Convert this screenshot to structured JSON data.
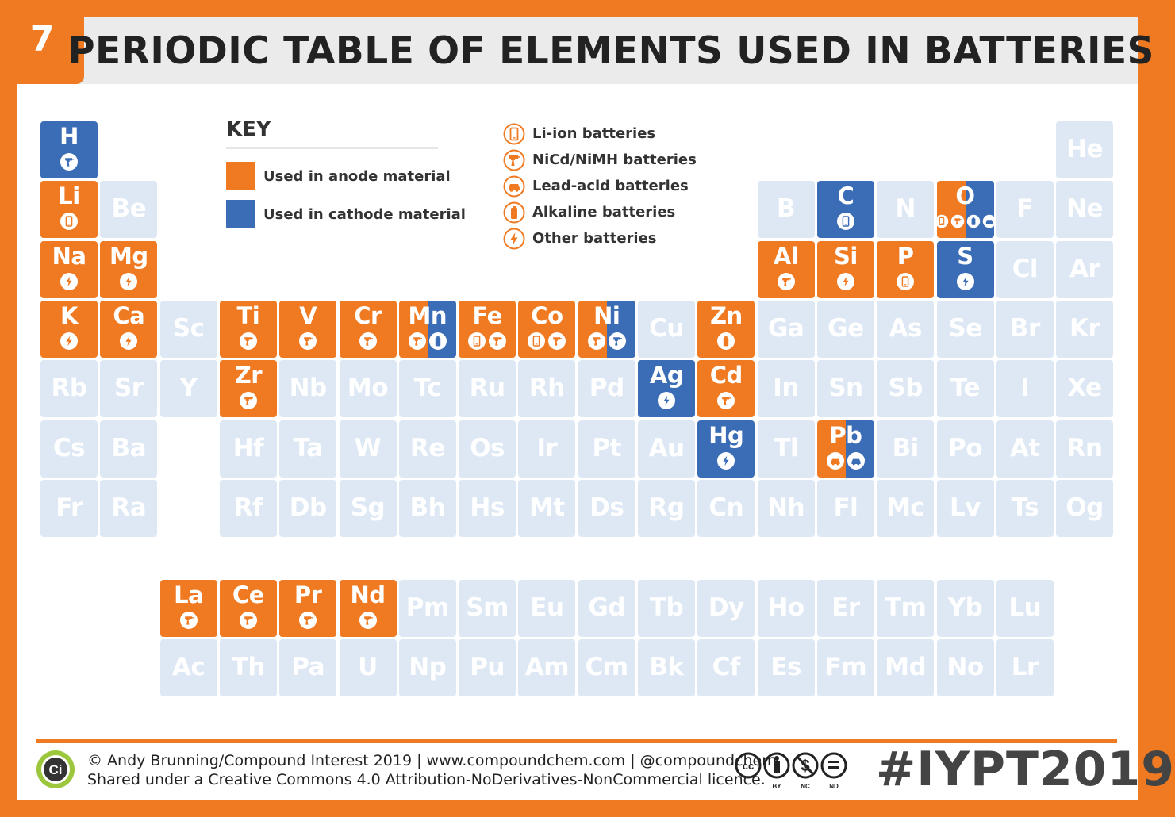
{
  "header": {
    "number": "7",
    "title": "PERIODIC TABLE OF ELEMENTS USED IN BATTERIES"
  },
  "colors": {
    "anode": "#ef7a22",
    "cathode": "#3a6db5",
    "unused": "#dde8f4",
    "frame": "#ef7a22"
  },
  "key": {
    "title": "KEY",
    "anode_label": "Used in anode material",
    "cathode_label": "Used in cathode material"
  },
  "battery_types": [
    {
      "icon": "phone-icon",
      "label": "Li-ion batteries"
    },
    {
      "icon": "drill-icon",
      "label": "NiCd/NiMH batteries"
    },
    {
      "icon": "car-icon",
      "label": "Lead-acid batteries"
    },
    {
      "icon": "battery-icon",
      "label": "Alkaline batteries"
    },
    {
      "icon": "bolt-icon",
      "label": "Other batteries"
    }
  ],
  "elements": [
    {
      "s": "H",
      "r": 1,
      "c": 1,
      "role": "cathode",
      "icons": [
        "drill"
      ]
    },
    {
      "s": "He",
      "r": 1,
      "c": 18
    },
    {
      "s": "Li",
      "r": 2,
      "c": 1,
      "role": "anode",
      "icons": [
        "phone"
      ]
    },
    {
      "s": "Be",
      "r": 2,
      "c": 2
    },
    {
      "s": "B",
      "r": 2,
      "c": 13
    },
    {
      "s": "C",
      "r": 2,
      "c": 14,
      "role": "cathode",
      "icons": [
        "phone"
      ]
    },
    {
      "s": "N",
      "r": 2,
      "c": 15
    },
    {
      "s": "O",
      "r": 2,
      "c": 16,
      "role": "both",
      "icons": [
        "phone",
        "drill",
        "battery",
        "car"
      ]
    },
    {
      "s": "F",
      "r": 2,
      "c": 17
    },
    {
      "s": "Ne",
      "r": 2,
      "c": 18
    },
    {
      "s": "Na",
      "r": 3,
      "c": 1,
      "role": "anode",
      "icons": [
        "bolt"
      ]
    },
    {
      "s": "Mg",
      "r": 3,
      "c": 2,
      "role": "anode",
      "icons": [
        "bolt"
      ]
    },
    {
      "s": "Al",
      "r": 3,
      "c": 13,
      "role": "anode",
      "icons": [
        "drill"
      ]
    },
    {
      "s": "Si",
      "r": 3,
      "c": 14,
      "role": "anode",
      "icons": [
        "bolt"
      ]
    },
    {
      "s": "P",
      "r": 3,
      "c": 15,
      "role": "anode",
      "icons": [
        "phone"
      ]
    },
    {
      "s": "S",
      "r": 3,
      "c": 16,
      "role": "cathode",
      "icons": [
        "bolt"
      ]
    },
    {
      "s": "Cl",
      "r": 3,
      "c": 17
    },
    {
      "s": "Ar",
      "r": 3,
      "c": 18
    },
    {
      "s": "K",
      "r": 4,
      "c": 1,
      "role": "anode",
      "icons": [
        "bolt"
      ]
    },
    {
      "s": "Ca",
      "r": 4,
      "c": 2,
      "role": "anode",
      "icons": [
        "bolt"
      ]
    },
    {
      "s": "Sc",
      "r": 4,
      "c": 3
    },
    {
      "s": "Ti",
      "r": 4,
      "c": 4,
      "role": "anode",
      "icons": [
        "drill"
      ]
    },
    {
      "s": "V",
      "r": 4,
      "c": 5,
      "role": "anode",
      "icons": [
        "drill"
      ]
    },
    {
      "s": "Cr",
      "r": 4,
      "c": 6,
      "role": "anode",
      "icons": [
        "drill"
      ]
    },
    {
      "s": "Mn",
      "r": 4,
      "c": 7,
      "role": "both",
      "icons": [
        "drill",
        "battery"
      ]
    },
    {
      "s": "Fe",
      "r": 4,
      "c": 8,
      "role": "anode",
      "icons": [
        "phone",
        "drill"
      ]
    },
    {
      "s": "Co",
      "r": 4,
      "c": 9,
      "role": "anode",
      "icons": [
        "phone",
        "drill"
      ]
    },
    {
      "s": "Ni",
      "r": 4,
      "c": 10,
      "role": "both",
      "icons": [
        "drill",
        "drill"
      ]
    },
    {
      "s": "Cu",
      "r": 4,
      "c": 11
    },
    {
      "s": "Zn",
      "r": 4,
      "c": 12,
      "role": "anode",
      "icons": [
        "battery"
      ]
    },
    {
      "s": "Ga",
      "r": 4,
      "c": 13
    },
    {
      "s": "Ge",
      "r": 4,
      "c": 14
    },
    {
      "s": "As",
      "r": 4,
      "c": 15
    },
    {
      "s": "Se",
      "r": 4,
      "c": 16
    },
    {
      "s": "Br",
      "r": 4,
      "c": 17
    },
    {
      "s": "Kr",
      "r": 4,
      "c": 18
    },
    {
      "s": "Rb",
      "r": 5,
      "c": 1
    },
    {
      "s": "Sr",
      "r": 5,
      "c": 2
    },
    {
      "s": "Y",
      "r": 5,
      "c": 3
    },
    {
      "s": "Zr",
      "r": 5,
      "c": 4,
      "role": "anode",
      "icons": [
        "drill"
      ]
    },
    {
      "s": "Nb",
      "r": 5,
      "c": 5
    },
    {
      "s": "Mo",
      "r": 5,
      "c": 6
    },
    {
      "s": "Tc",
      "r": 5,
      "c": 7
    },
    {
      "s": "Ru",
      "r": 5,
      "c": 8
    },
    {
      "s": "Rh",
      "r": 5,
      "c": 9
    },
    {
      "s": "Pd",
      "r": 5,
      "c": 10
    },
    {
      "s": "Ag",
      "r": 5,
      "c": 11,
      "role": "cathode",
      "icons": [
        "bolt"
      ]
    },
    {
      "s": "Cd",
      "r": 5,
      "c": 12,
      "role": "anode",
      "icons": [
        "drill"
      ]
    },
    {
      "s": "In",
      "r": 5,
      "c": 13
    },
    {
      "s": "Sn",
      "r": 5,
      "c": 14
    },
    {
      "s": "Sb",
      "r": 5,
      "c": 15
    },
    {
      "s": "Te",
      "r": 5,
      "c": 16
    },
    {
      "s": "I",
      "r": 5,
      "c": 17
    },
    {
      "s": "Xe",
      "r": 5,
      "c": 18
    },
    {
      "s": "Cs",
      "r": 6,
      "c": 1
    },
    {
      "s": "Ba",
      "r": 6,
      "c": 2
    },
    {
      "s": "Hf",
      "r": 6,
      "c": 4
    },
    {
      "s": "Ta",
      "r": 6,
      "c": 5
    },
    {
      "s": "W",
      "r": 6,
      "c": 6
    },
    {
      "s": "Re",
      "r": 6,
      "c": 7
    },
    {
      "s": "Os",
      "r": 6,
      "c": 8
    },
    {
      "s": "Ir",
      "r": 6,
      "c": 9
    },
    {
      "s": "Pt",
      "r": 6,
      "c": 10
    },
    {
      "s": "Au",
      "r": 6,
      "c": 11
    },
    {
      "s": "Hg",
      "r": 6,
      "c": 12,
      "role": "cathode",
      "icons": [
        "bolt"
      ]
    },
    {
      "s": "Tl",
      "r": 6,
      "c": 13
    },
    {
      "s": "Pb",
      "r": 6,
      "c": 14,
      "role": "both",
      "icons": [
        "car",
        "car"
      ]
    },
    {
      "s": "Bi",
      "r": 6,
      "c": 15
    },
    {
      "s": "Po",
      "r": 6,
      "c": 16
    },
    {
      "s": "At",
      "r": 6,
      "c": 17
    },
    {
      "s": "Rn",
      "r": 6,
      "c": 18
    },
    {
      "s": "Fr",
      "r": 7,
      "c": 1
    },
    {
      "s": "Ra",
      "r": 7,
      "c": 2
    },
    {
      "s": "Rf",
      "r": 7,
      "c": 4
    },
    {
      "s": "Db",
      "r": 7,
      "c": 5
    },
    {
      "s": "Sg",
      "r": 7,
      "c": 6
    },
    {
      "s": "Bh",
      "r": 7,
      "c": 7
    },
    {
      "s": "Hs",
      "r": 7,
      "c": 8
    },
    {
      "s": "Mt",
      "r": 7,
      "c": 9
    },
    {
      "s": "Ds",
      "r": 7,
      "c": 10
    },
    {
      "s": "Rg",
      "r": 7,
      "c": 11
    },
    {
      "s": "Cn",
      "r": 7,
      "c": 12
    },
    {
      "s": "Nh",
      "r": 7,
      "c": 13
    },
    {
      "s": "Fl",
      "r": 7,
      "c": 14
    },
    {
      "s": "Mc",
      "r": 7,
      "c": 15
    },
    {
      "s": "Lv",
      "r": 7,
      "c": 16
    },
    {
      "s": "Ts",
      "r": 7,
      "c": 17
    },
    {
      "s": "Og",
      "r": 7,
      "c": 18
    },
    {
      "s": "La",
      "r": 9,
      "c": 3,
      "role": "anode",
      "icons": [
        "drill"
      ]
    },
    {
      "s": "Ce",
      "r": 9,
      "c": 4,
      "role": "anode",
      "icons": [
        "drill"
      ]
    },
    {
      "s": "Pr",
      "r": 9,
      "c": 5,
      "role": "anode",
      "icons": [
        "drill"
      ]
    },
    {
      "s": "Nd",
      "r": 9,
      "c": 6,
      "role": "anode",
      "icons": [
        "drill"
      ]
    },
    {
      "s": "Pm",
      "r": 9,
      "c": 7
    },
    {
      "s": "Sm",
      "r": 9,
      "c": 8
    },
    {
      "s": "Eu",
      "r": 9,
      "c": 9
    },
    {
      "s": "Gd",
      "r": 9,
      "c": 10
    },
    {
      "s": "Tb",
      "r": 9,
      "c": 11
    },
    {
      "s": "Dy",
      "r": 9,
      "c": 12
    },
    {
      "s": "Ho",
      "r": 9,
      "c": 13
    },
    {
      "s": "Er",
      "r": 9,
      "c": 14
    },
    {
      "s": "Tm",
      "r": 9,
      "c": 15
    },
    {
      "s": "Yb",
      "r": 9,
      "c": 16
    },
    {
      "s": "Lu",
      "r": 9,
      "c": 17
    },
    {
      "s": "Ac",
      "r": 10,
      "c": 3
    },
    {
      "s": "Th",
      "r": 10,
      "c": 4
    },
    {
      "s": "Pa",
      "r": 10,
      "c": 5
    },
    {
      "s": "U",
      "r": 10,
      "c": 6
    },
    {
      "s": "Np",
      "r": 10,
      "c": 7
    },
    {
      "s": "Pu",
      "r": 10,
      "c": 8
    },
    {
      "s": "Am",
      "r": 10,
      "c": 9
    },
    {
      "s": "Cm",
      "r": 10,
      "c": 10
    },
    {
      "s": "Bk",
      "r": 10,
      "c": 11
    },
    {
      "s": "Cf",
      "r": 10,
      "c": 12
    },
    {
      "s": "Es",
      "r": 10,
      "c": 13
    },
    {
      "s": "Fm",
      "r": 10,
      "c": 14
    },
    {
      "s": "Md",
      "r": 10,
      "c": 15
    },
    {
      "s": "No",
      "r": 10,
      "c": 16
    },
    {
      "s": "Lr",
      "r": 10,
      "c": 17
    }
  ],
  "footer": {
    "logo_text": "Ci",
    "credit_line1": "© Andy Brunning/Compound Interest 2019 | www.compoundchem.com | @compoundchem",
    "credit_line2": "Shared under a Creative Commons 4.0 Attribution-NoDerivatives-NonCommercial licence.",
    "cc_labels": [
      "BY",
      "NC",
      "ND"
    ],
    "hashtag": "#IYPT2019"
  }
}
